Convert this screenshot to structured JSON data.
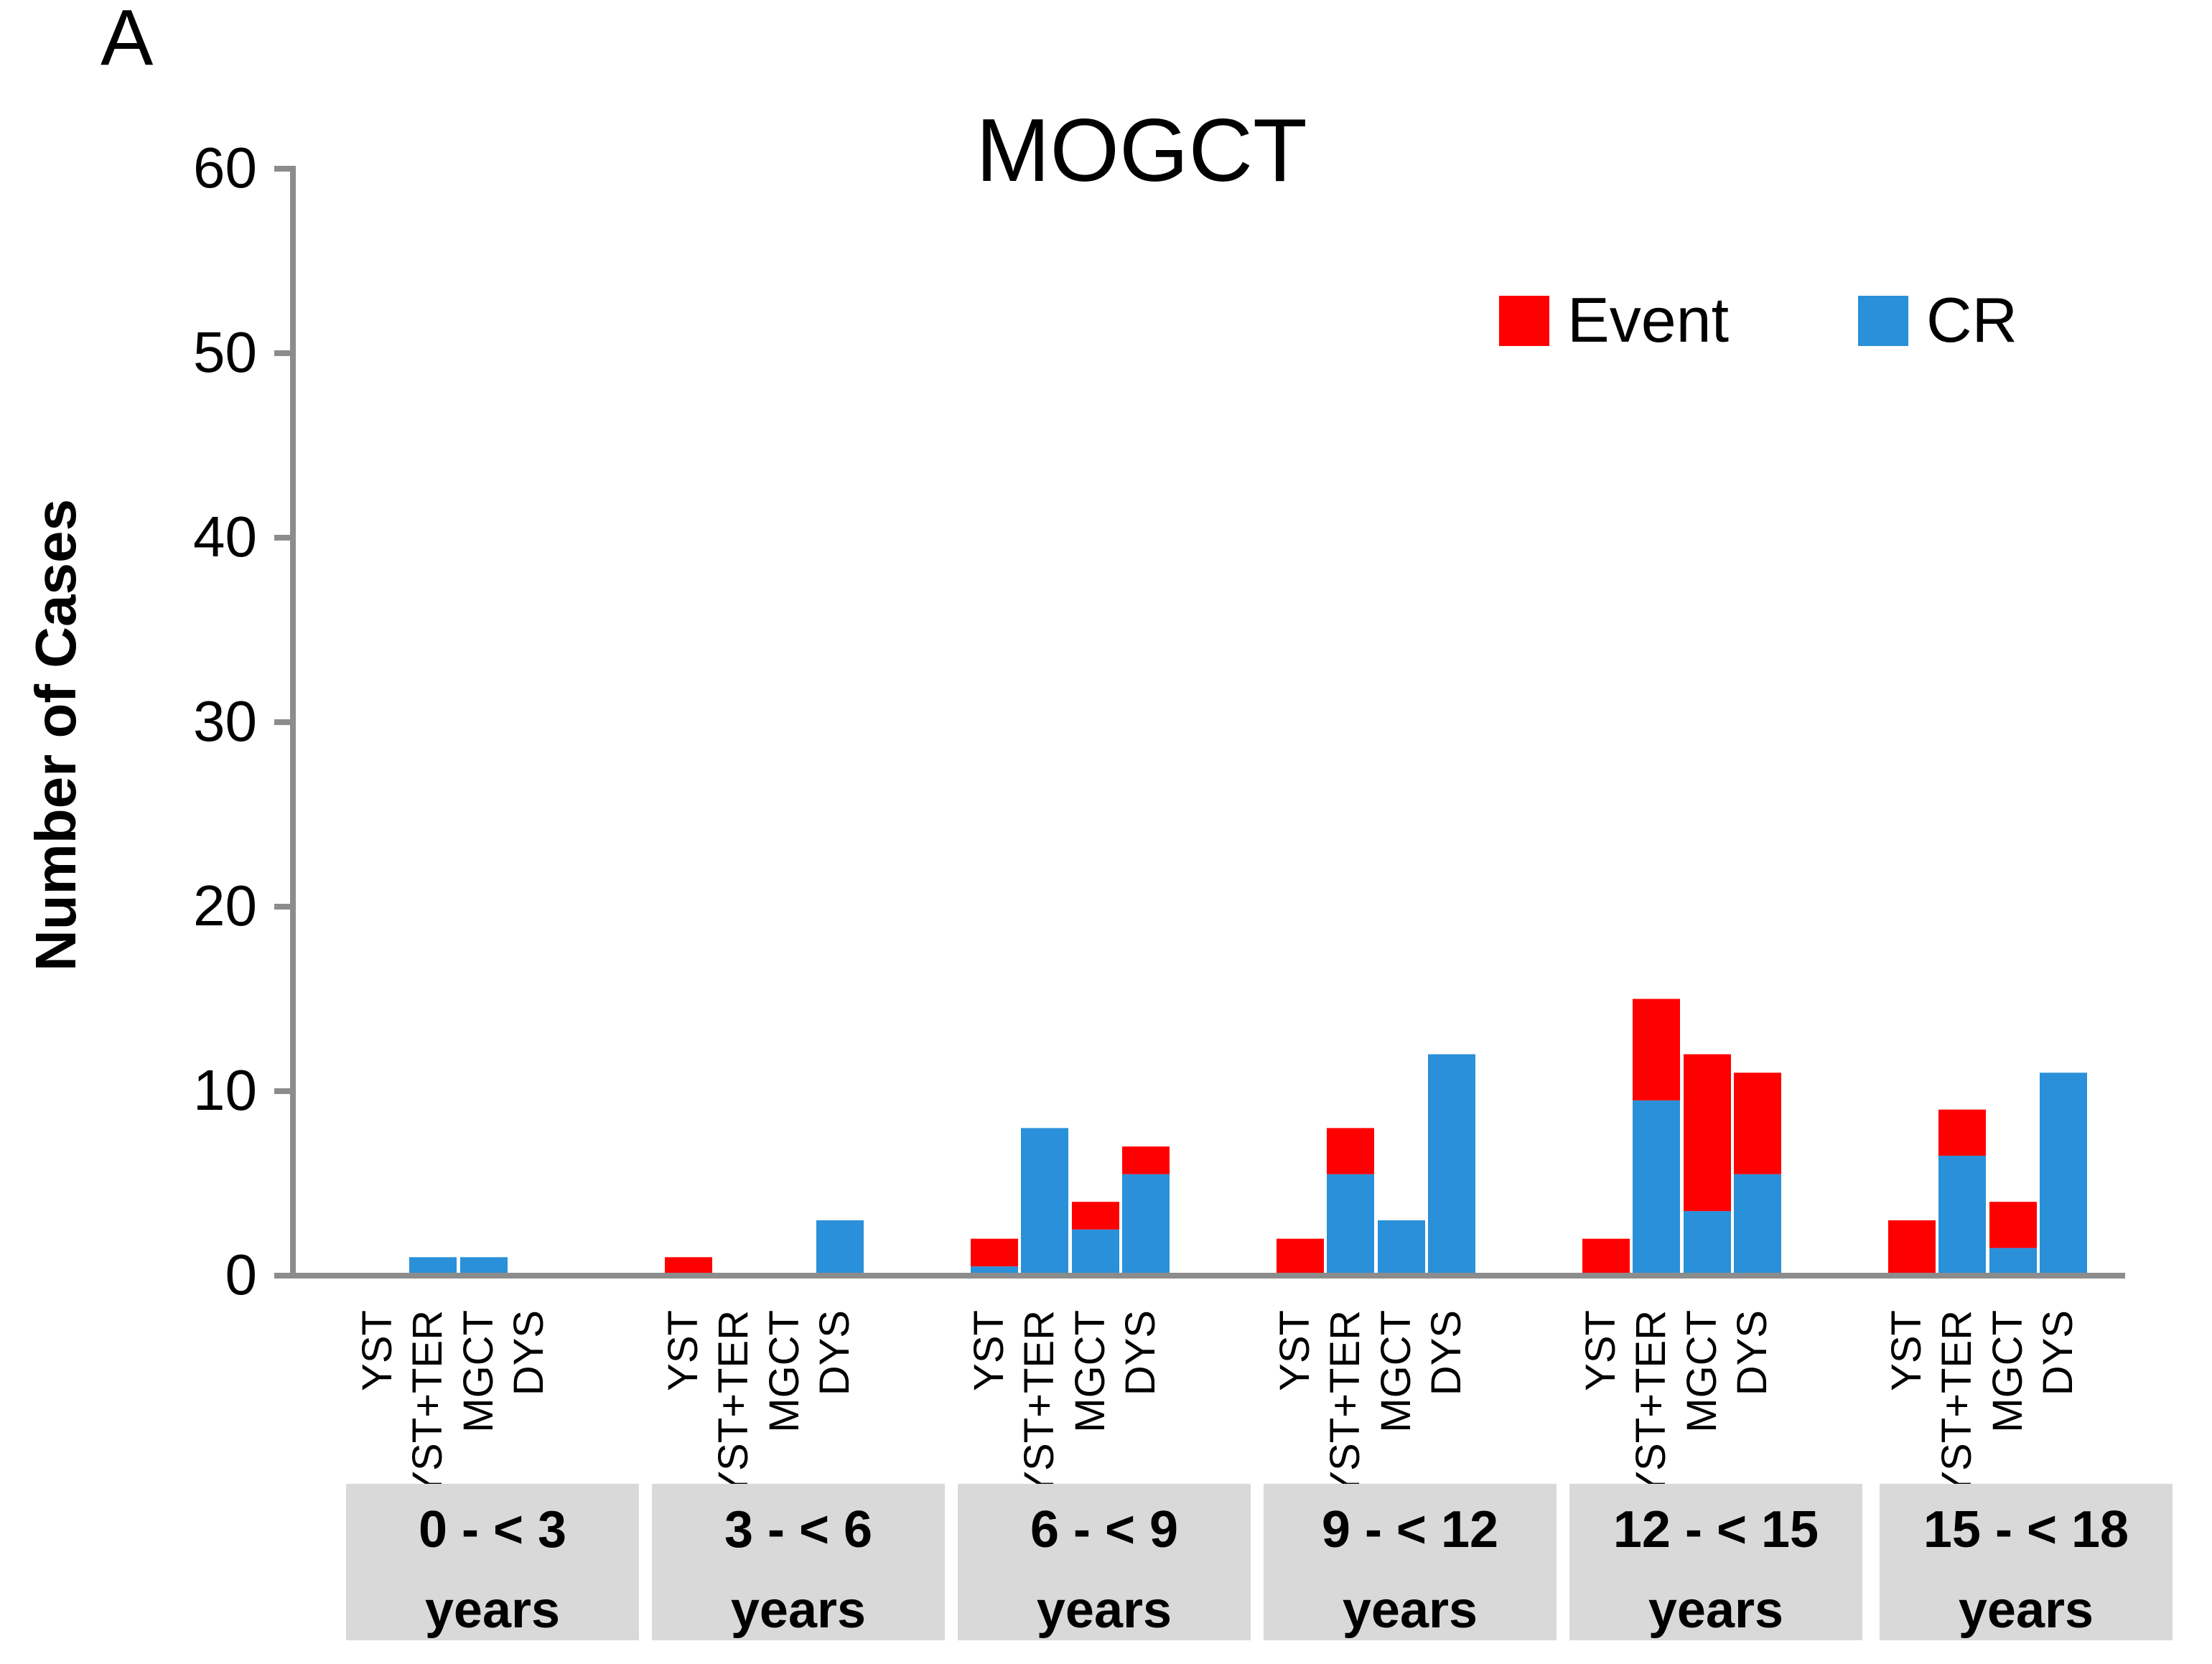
{
  "panel_label": "A",
  "chart_data": {
    "type": "bar",
    "stacked": true,
    "title": "MOGCT",
    "xlabel": "",
    "ylabel": "Number of Cases",
    "ylim": [
      0,
      60
    ],
    "yticks": [
      0,
      10,
      20,
      30,
      40,
      50,
      60
    ],
    "grid": false,
    "legend_position": "top-right",
    "legend": [
      {
        "name": "Event",
        "color": "#ff0000"
      },
      {
        "name": "CR",
        "color": "#2a90d9"
      }
    ],
    "age_groups": [
      {
        "line1": "0 - < 3",
        "line2": "years"
      },
      {
        "line1": "3 - < 6",
        "line2": "years"
      },
      {
        "line1": "6 - < 9",
        "line2": "years"
      },
      {
        "line1": "9 - < 12",
        "line2": "years"
      },
      {
        "line1": "12 - < 15",
        "line2": "years"
      },
      {
        "line1": "15  - < 18",
        "line2": "years"
      }
    ],
    "categories": [
      "YST",
      "YST+TER",
      "MGCT",
      "DYS"
    ],
    "series": [
      {
        "name": "CR",
        "color": "#2a90d9",
        "values": [
          [
            0,
            1,
            1,
            0
          ],
          [
            0,
            0,
            0,
            3
          ],
          [
            0.5,
            8,
            2.5,
            5.5
          ],
          [
            0,
            5.5,
            3,
            12
          ],
          [
            0,
            9.5,
            3.5,
            5.5
          ],
          [
            0,
            6.5,
            1.5,
            11
          ]
        ]
      },
      {
        "name": "Event",
        "color": "#ff0000",
        "values": [
          [
            0,
            0,
            0,
            0
          ],
          [
            1,
            0,
            0,
            0
          ],
          [
            1.5,
            0,
            1.5,
            1.5
          ],
          [
            2,
            2.5,
            0,
            0
          ],
          [
            2,
            5.5,
            8.5,
            5.5
          ],
          [
            3,
            2.5,
            2.5,
            0
          ]
        ]
      }
    ]
  }
}
